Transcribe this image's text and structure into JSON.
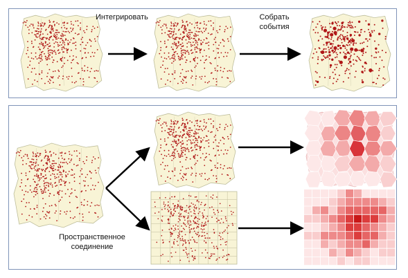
{
  "labels": {
    "integrate": "Интегрировать",
    "collect_events_line1": "Собрать",
    "collect_events_line2": "события",
    "spatial_join_line1": "Пространственное",
    "spatial_join_line2": "соединение"
  },
  "colors": {
    "map_fill": "#f8f4d6",
    "map_outline": "#bdbd9a",
    "point": "#b01818",
    "arrow": "#000000",
    "panel_border": "#7f93b8",
    "choropleth_light": "#fbe0e0",
    "choropleth_dark": "#d8343a",
    "grid_light": "#fbe3e3",
    "grid_dark": "#c81818"
  }
}
